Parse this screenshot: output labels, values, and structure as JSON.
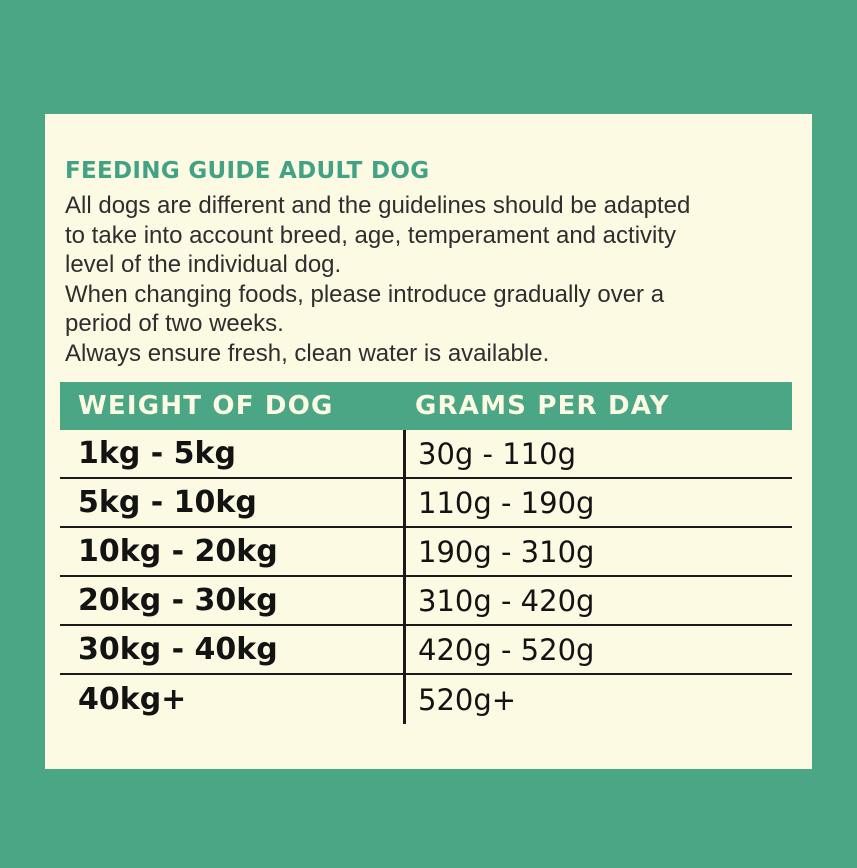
{
  "card": {
    "title": "FEEDING GUIDE ADULT DOG",
    "intro_lines": [
      "All dogs are different and the guidelines should be adapted",
      "to take into account breed, age, temperament and activity",
      "level of the individual dog.",
      "When changing foods, please introduce gradually over a",
      "period of two weeks.",
      "Always ensure fresh, clean water is available."
    ]
  },
  "table": {
    "headers": {
      "weight": "WEIGHT OF DOG",
      "grams": "GRAMS PER DAY"
    },
    "rows": [
      {
        "weight": "1kg - 5kg",
        "grams": "30g - 110g"
      },
      {
        "weight": "5kg - 10kg",
        "grams": "110g - 190g"
      },
      {
        "weight": "10kg - 20kg",
        "grams": "190g - 310g"
      },
      {
        "weight": "20kg - 30kg",
        "grams": "310g - 420g"
      },
      {
        "weight": "30kg - 40kg",
        "grams": "420g - 520g"
      },
      {
        "weight": "40kg+",
        "grams": "520g+"
      }
    ]
  },
  "colors": {
    "background_green": "#4ba685",
    "card_cream": "#fdfae3",
    "title_green": "#41a286",
    "body_text": "#2e2e2e",
    "table_text": "#131313",
    "rule_black": "#1a1a1a"
  }
}
